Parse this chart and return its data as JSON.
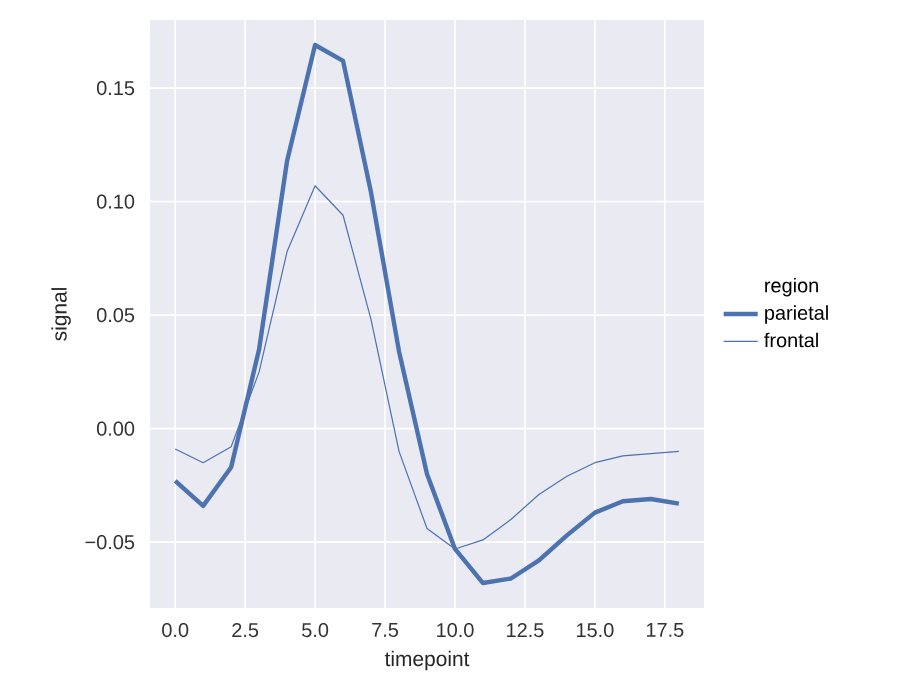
{
  "chart_data": {
    "type": "line",
    "xlabel": "timepoint",
    "ylabel": "signal",
    "legend_title": "region",
    "legend": "right",
    "grid": true,
    "x": [
      0,
      1,
      2,
      3,
      4,
      5,
      6,
      7,
      8,
      9,
      10,
      11,
      12,
      13,
      14,
      15,
      16,
      17,
      18
    ],
    "series": [
      {
        "name": "parietal",
        "color": "#4c72b0",
        "values": [
          -0.023,
          -0.034,
          -0.017,
          0.035,
          0.118,
          0.169,
          0.162,
          0.104,
          0.034,
          -0.02,
          -0.053,
          -0.068,
          -0.066,
          -0.058,
          -0.047,
          -0.037,
          -0.032,
          -0.031,
          -0.033
        ]
      },
      {
        "name": "frontal",
        "color": "#4c72b0",
        "values": [
          -0.009,
          -0.015,
          -0.008,
          0.025,
          0.078,
          0.107,
          0.094,
          0.048,
          -0.01,
          -0.044,
          -0.053,
          -0.049,
          -0.04,
          -0.029,
          -0.021,
          -0.015,
          -0.012,
          -0.011,
          -0.01
        ]
      }
    ],
    "xlim": [
      -0.9,
      18.9
    ],
    "ylim": [
      -0.079,
      0.18
    ],
    "xticks": [
      {
        "value": 0,
        "label": "0.0"
      },
      {
        "value": 2.5,
        "label": "2.5"
      },
      {
        "value": 5,
        "label": "5.0"
      },
      {
        "value": 7.5,
        "label": "7.5"
      },
      {
        "value": 10,
        "label": "10.0"
      },
      {
        "value": 12.5,
        "label": "12.5"
      },
      {
        "value": 15,
        "label": "15.0"
      },
      {
        "value": 17.5,
        "label": "17.5"
      }
    ],
    "yticks": [
      {
        "value": -0.05,
        "label": "−0.05"
      },
      {
        "value": 0,
        "label": "0.00"
      },
      {
        "value": 0.05,
        "label": "0.05"
      },
      {
        "value": 0.1,
        "label": "0.10"
      },
      {
        "value": 0.15,
        "label": "0.15"
      }
    ]
  }
}
